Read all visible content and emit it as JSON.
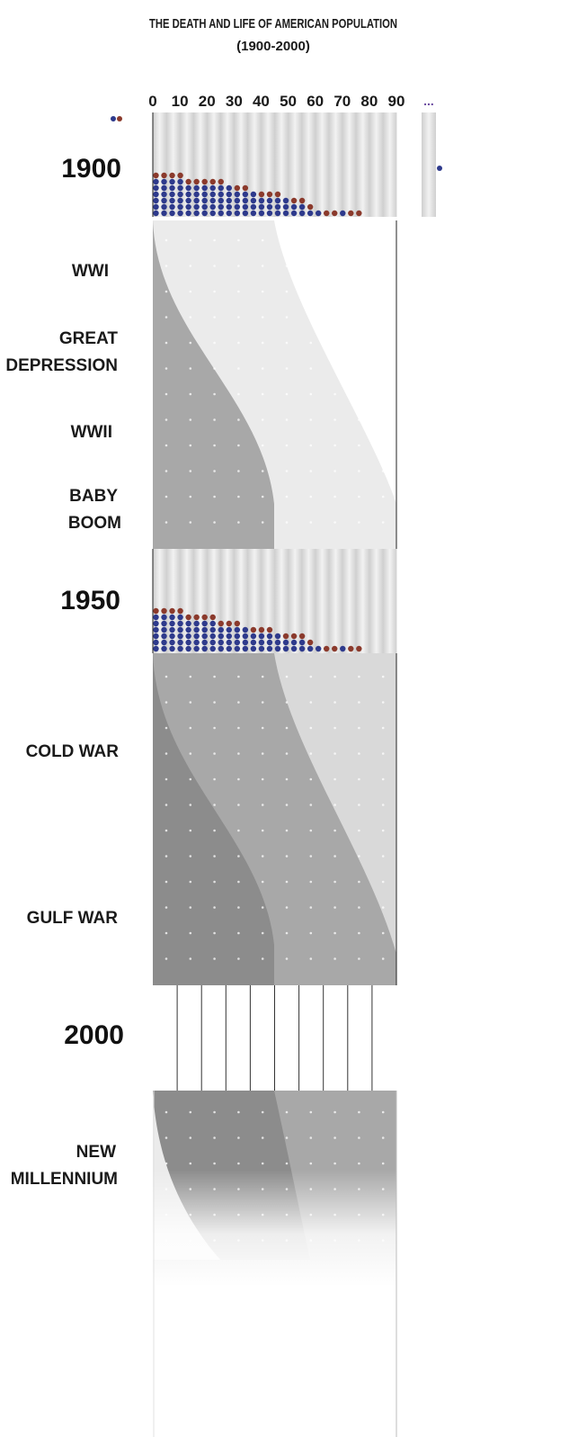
{
  "title_line1": "THE DEATH AND LIFE OF AMERICAN POPULATION",
  "title_line2": "(1900-2000)",
  "colors": {
    "male": "#2e3a8c",
    "female": "#8b3a2c",
    "band_1900": "#d6d6d6",
    "flow_light": "#ebebeb",
    "flow_mid": "#d9d9d9",
    "flow_dark": "#a8a8a8",
    "flow_darker": "#8c8c8c"
  },
  "ellipsis": "...",
  "chart_data": {
    "type": "bar",
    "xlabel": "",
    "ylabel": "",
    "x_ticks": [
      "0",
      "10",
      "20",
      "30",
      "40",
      "50",
      "60",
      "70",
      "80",
      "90"
    ],
    "xlim": [
      0,
      90
    ],
    "units": "dots",
    "categories": [
      "0",
      "3",
      "6",
      "9",
      "12",
      "15",
      "18",
      "21",
      "24",
      "27",
      "30",
      "33",
      "36",
      "39",
      "42",
      "45",
      "48",
      "51",
      "54",
      "57",
      "60",
      "63",
      "66",
      "69",
      "72",
      "75"
    ],
    "years": [
      {
        "label": "1900",
        "stacks": [
          {
            "male": 6,
            "female": 1
          },
          {
            "male": 6,
            "female": 1
          },
          {
            "male": 6,
            "female": 1
          },
          {
            "male": 6,
            "female": 1
          },
          {
            "male": 5,
            "female": 1
          },
          {
            "male": 5,
            "female": 1
          },
          {
            "male": 5,
            "female": 1
          },
          {
            "male": 5,
            "female": 1
          },
          {
            "male": 5,
            "female": 1
          },
          {
            "male": 5,
            "female": 0
          },
          {
            "male": 4,
            "female": 1
          },
          {
            "male": 4,
            "female": 1
          },
          {
            "male": 4,
            "female": 0
          },
          {
            "male": 3,
            "female": 1
          },
          {
            "male": 3,
            "female": 1
          },
          {
            "male": 3,
            "female": 1
          },
          {
            "male": 3,
            "female": 0
          },
          {
            "male": 2,
            "female": 1
          },
          {
            "male": 2,
            "female": 1
          },
          {
            "male": 1,
            "female": 1
          },
          {
            "male": 1,
            "female": 0
          },
          {
            "male": 0,
            "female": 1
          },
          {
            "male": 0,
            "female": 1
          },
          {
            "male": 1,
            "female": 0
          },
          {
            "male": 0,
            "female": 1
          },
          {
            "male": 0,
            "female": 1
          }
        ]
      },
      {
        "label": "1950",
        "stacks": [
          {
            "male": 6,
            "female": 1
          },
          {
            "male": 6,
            "female": 1
          },
          {
            "male": 6,
            "female": 1
          },
          {
            "male": 6,
            "female": 1
          },
          {
            "male": 5,
            "female": 1
          },
          {
            "male": 5,
            "female": 1
          },
          {
            "male": 5,
            "female": 1
          },
          {
            "male": 5,
            "female": 1
          },
          {
            "male": 4,
            "female": 1
          },
          {
            "male": 4,
            "female": 1
          },
          {
            "male": 4,
            "female": 1
          },
          {
            "male": 4,
            "female": 0
          },
          {
            "male": 3,
            "female": 1
          },
          {
            "male": 3,
            "female": 1
          },
          {
            "male": 3,
            "female": 1
          },
          {
            "male": 3,
            "female": 0
          },
          {
            "male": 2,
            "female": 1
          },
          {
            "male": 2,
            "female": 1
          },
          {
            "male": 2,
            "female": 1
          },
          {
            "male": 1,
            "female": 1
          },
          {
            "male": 1,
            "female": 0
          },
          {
            "male": 0,
            "female": 1
          },
          {
            "male": 0,
            "female": 1
          },
          {
            "male": 1,
            "female": 0
          },
          {
            "male": 0,
            "female": 1
          },
          {
            "male": 0,
            "female": 1
          }
        ]
      },
      {
        "label": "2000"
      }
    ],
    "eras": [
      {
        "label": [
          "WWI"
        ]
      },
      {
        "label": [
          "GREAT",
          "DEPRESSION"
        ]
      },
      {
        "label": [
          "WWII"
        ]
      },
      {
        "label": [
          "BABY",
          "BOOM"
        ]
      },
      {
        "label": [
          "COLD WAR"
        ]
      },
      {
        "label": [
          "GULF WAR"
        ]
      },
      {
        "label": [
          "NEW",
          "MILLENNIUM"
        ]
      }
    ]
  }
}
